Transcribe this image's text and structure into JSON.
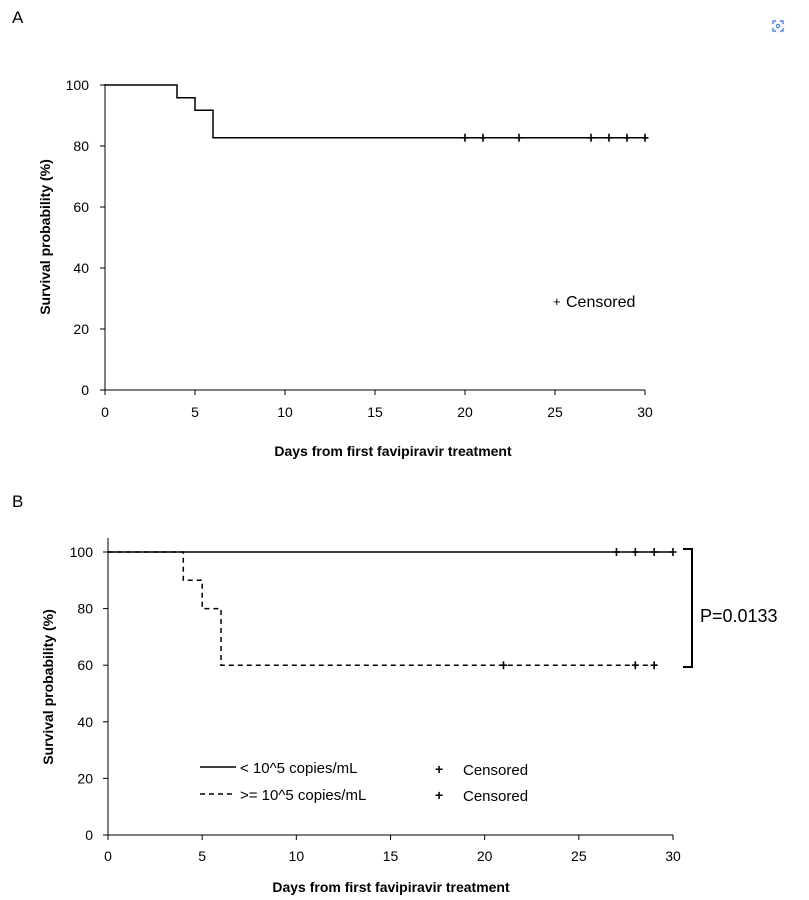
{
  "panels": {
    "a": {
      "letter": "A"
    },
    "b": {
      "letter": "B"
    }
  },
  "icons": {
    "corner": "expand-icon"
  },
  "colors": {
    "line": "#000000",
    "accent_icon": "#3b6fd6"
  },
  "chart_data": [
    {
      "type": "line",
      "panel": "A",
      "xlabel": "Days from first favipiravir treatment",
      "ylabel": "Survival probability (%)",
      "xlim": [
        0,
        30
      ],
      "ylim": [
        0,
        100
      ],
      "x_ticks": [
        0,
        5,
        10,
        15,
        20,
        25,
        30
      ],
      "y_ticks": [
        0,
        20,
        40,
        60,
        80,
        100
      ],
      "grid": false,
      "step": true,
      "legend": {
        "marker": "+",
        "label": "Censored",
        "placement": "right-middle"
      },
      "series": [
        {
          "style": "solid",
          "points": [
            [
              0,
              100
            ],
            [
              4,
              100
            ],
            [
              4,
              95.8
            ],
            [
              5,
              95.8
            ],
            [
              5,
              91.7
            ],
            [
              6,
              91.7
            ],
            [
              6,
              82.7
            ],
            [
              30,
              82.7
            ]
          ],
          "censored": [
            [
              20,
              82.7
            ],
            [
              21,
              82.7
            ],
            [
              23,
              82.7
            ],
            [
              27,
              82.7
            ],
            [
              28,
              82.7
            ],
            [
              29,
              82.7
            ],
            [
              30,
              82.7
            ]
          ]
        }
      ]
    },
    {
      "type": "line",
      "panel": "B",
      "xlabel": "Days from first favipiravir treatment",
      "ylabel": "Survival probability (%)",
      "xlim": [
        0,
        30
      ],
      "ylim": [
        0,
        100
      ],
      "x_ticks": [
        0,
        5,
        10,
        15,
        20,
        25,
        30
      ],
      "y_ticks": [
        0,
        20,
        40,
        60,
        80,
        100
      ],
      "grid": false,
      "step": true,
      "legend_placement": "bottom-left",
      "annotation": "P=0.0133",
      "series": [
        {
          "name": "< 10^5 copies/mL",
          "style": "solid",
          "censor_label": "Censored",
          "points": [
            [
              0,
              100
            ],
            [
              30,
              100
            ]
          ],
          "censored": [
            [
              27,
              100
            ],
            [
              28,
              100
            ],
            [
              29,
              100
            ],
            [
              30,
              100
            ]
          ]
        },
        {
          "name": ">= 10^5 copies/mL",
          "style": "dashed",
          "censor_label": "Censored",
          "points": [
            [
              0,
              100
            ],
            [
              4,
              100
            ],
            [
              4,
              90
            ],
            [
              5,
              90
            ],
            [
              5,
              80
            ],
            [
              6,
              80
            ],
            [
              6,
              60
            ],
            [
              29,
              60
            ]
          ],
          "censored": [
            [
              21,
              60
            ],
            [
              28,
              60
            ],
            [
              29,
              60
            ]
          ]
        }
      ]
    }
  ]
}
